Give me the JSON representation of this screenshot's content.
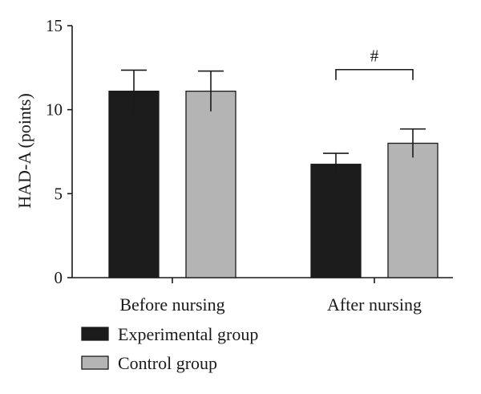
{
  "chart_data": {
    "type": "bar",
    "ylabel": "HAD-A (points)",
    "ylim": [
      0,
      15
    ],
    "yticks": [
      0,
      5,
      10,
      15
    ],
    "grid": false,
    "categories": [
      "Before nursing",
      "After nursing"
    ],
    "series": [
      {
        "name": "Experimental group",
        "color": "#1c1c1c",
        "values": [
          11.1,
          6.75
        ],
        "errors": [
          1.25,
          0.65
        ]
      },
      {
        "name": "Control group",
        "color": "#b4b4b4",
        "values": [
          11.1,
          8.0
        ],
        "errors": [
          1.2,
          0.85
        ]
      }
    ],
    "annotations": [
      {
        "text": "#",
        "category": "After nursing",
        "type": "significance-bracket"
      }
    ],
    "legend": {
      "position": "bottom-left"
    }
  }
}
